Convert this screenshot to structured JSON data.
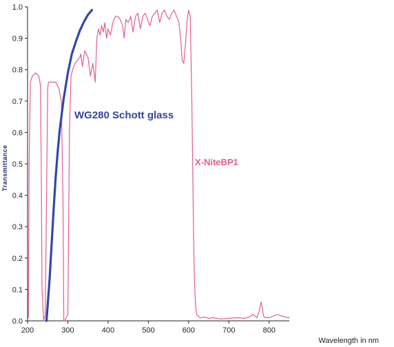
{
  "chart_data": {
    "type": "line",
    "title": "",
    "xlabel": "Wavelength in nm",
    "ylabel": "Transmittance",
    "xlim": [
      200,
      850
    ],
    "ylim": [
      0,
      1.0
    ],
    "x_ticks": [
      200,
      300,
      400,
      500,
      600,
      700,
      800
    ],
    "y_ticks": [
      "0.0",
      "0.1",
      "0.2",
      "0.3",
      "0.4",
      "0.5",
      "0.6",
      "0.7",
      "0.8",
      "0.9",
      "1.0"
    ],
    "grid": false,
    "legend": "inline labels",
    "series": [
      {
        "name": "WG280 Schott glass",
        "color": "#3247a8",
        "x": [
          247,
          250,
          255,
          260,
          265,
          270,
          275,
          280,
          290,
          300,
          310,
          320,
          330,
          340,
          350,
          360
        ],
        "y": [
          0.0,
          0.05,
          0.14,
          0.25,
          0.36,
          0.46,
          0.54,
          0.61,
          0.71,
          0.79,
          0.85,
          0.89,
          0.925,
          0.952,
          0.975,
          0.99
        ]
      },
      {
        "name": "X-NiteBP1",
        "color": "#e35d8f",
        "x": [
          202,
          204,
          207,
          212,
          220,
          228,
          232,
          234,
          236,
          240,
          244,
          248,
          250,
          252,
          256,
          262,
          270,
          278,
          284,
          288,
          290,
          292,
          296,
          300,
          304,
          308,
          312,
          318,
          324,
          330,
          332,
          336,
          342,
          350,
          356,
          362,
          368,
          372,
          376,
          380,
          384,
          388,
          392,
          396,
          400,
          406,
          412,
          418,
          424,
          430,
          436,
          440,
          444,
          450,
          456,
          462,
          468,
          474,
          480,
          486,
          492,
          498,
          504,
          510,
          516,
          522,
          528,
          534,
          540,
          546,
          552,
          558,
          564,
          570,
          576,
          580,
          584,
          588,
          592,
          596,
          600,
          604,
          608,
          612,
          614,
          616,
          618,
          620,
          624,
          628,
          632,
          640,
          650,
          660,
          680,
          700,
          720,
          740,
          750,
          760,
          770,
          775,
          778,
          780,
          783,
          786,
          790,
          800,
          820,
          840,
          850
        ],
        "y": [
          0.01,
          0.5,
          0.76,
          0.78,
          0.79,
          0.78,
          0.75,
          0.5,
          0.1,
          0.0,
          0.02,
          0.5,
          0.74,
          0.76,
          0.76,
          0.76,
          0.76,
          0.74,
          0.7,
          0.4,
          0.0,
          0.0,
          0.01,
          0.02,
          0.6,
          0.78,
          0.8,
          0.82,
          0.83,
          0.84,
          0.85,
          0.81,
          0.86,
          0.84,
          0.78,
          0.82,
          0.76,
          0.9,
          0.93,
          0.91,
          0.94,
          0.92,
          0.95,
          0.9,
          0.93,
          0.91,
          0.95,
          0.97,
          0.97,
          0.96,
          0.94,
          0.9,
          0.96,
          0.95,
          0.97,
          0.92,
          0.97,
          0.98,
          0.93,
          0.97,
          0.98,
          0.96,
          0.94,
          0.97,
          0.98,
          0.99,
          0.95,
          0.98,
          0.99,
          0.97,
          0.96,
          0.98,
          0.99,
          0.97,
          0.95,
          0.9,
          0.83,
          0.82,
          0.88,
          0.95,
          0.99,
          0.97,
          0.7,
          0.3,
          0.15,
          0.08,
          0.04,
          0.02,
          0.015,
          0.01,
          0.01,
          0.012,
          0.008,
          0.01,
          0.006,
          0.008,
          0.01,
          0.008,
          0.012,
          0.02,
          0.01,
          0.03,
          0.05,
          0.06,
          0.04,
          0.015,
          0.01,
          0.01,
          0.02,
          0.012,
          0.01
        ]
      }
    ],
    "annotations": [
      {
        "text": "WG280 Schott glass",
        "series": 0
      },
      {
        "text": "X-NiteBP1",
        "series": 1
      }
    ]
  }
}
